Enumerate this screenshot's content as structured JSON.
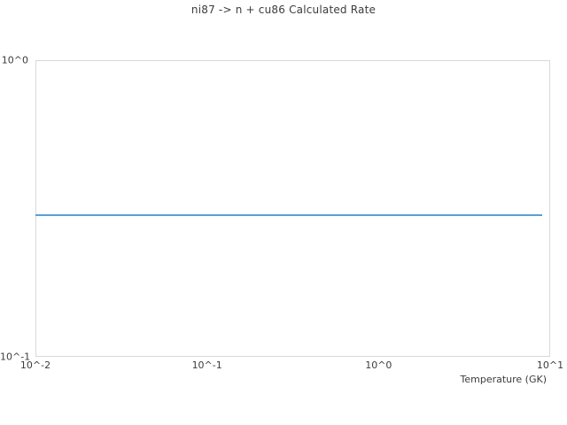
{
  "chart_data": {
    "type": "line",
    "title": "ni87 -> n + cu86 Calculated Rate",
    "xlabel": "Temperature (GK)",
    "ylabel": "",
    "x_scale": "log",
    "y_scale": "log",
    "xlim": [
      0.01,
      10
    ],
    "ylim": [
      0.1,
      1
    ],
    "x_ticks": [
      0.01,
      0.1,
      1,
      10
    ],
    "x_tick_labels": [
      "10^-2",
      "10^-1",
      "10^0",
      "10^1"
    ],
    "y_ticks": [
      1,
      0.1
    ],
    "y_tick_labels": [
      "10^0",
      "10^-1"
    ],
    "grid": false,
    "legend": "none",
    "colors": {
      "background": "#ffffff",
      "plot_border": "#d9d9d9",
      "text": "#3c3c3c",
      "line": "#5a9fd4"
    },
    "series": [
      {
        "name": "calculated rate",
        "color": "#5a9fd4",
        "x": [
          0.01,
          9.0
        ],
        "y": [
          0.3,
          0.3
        ]
      }
    ]
  }
}
